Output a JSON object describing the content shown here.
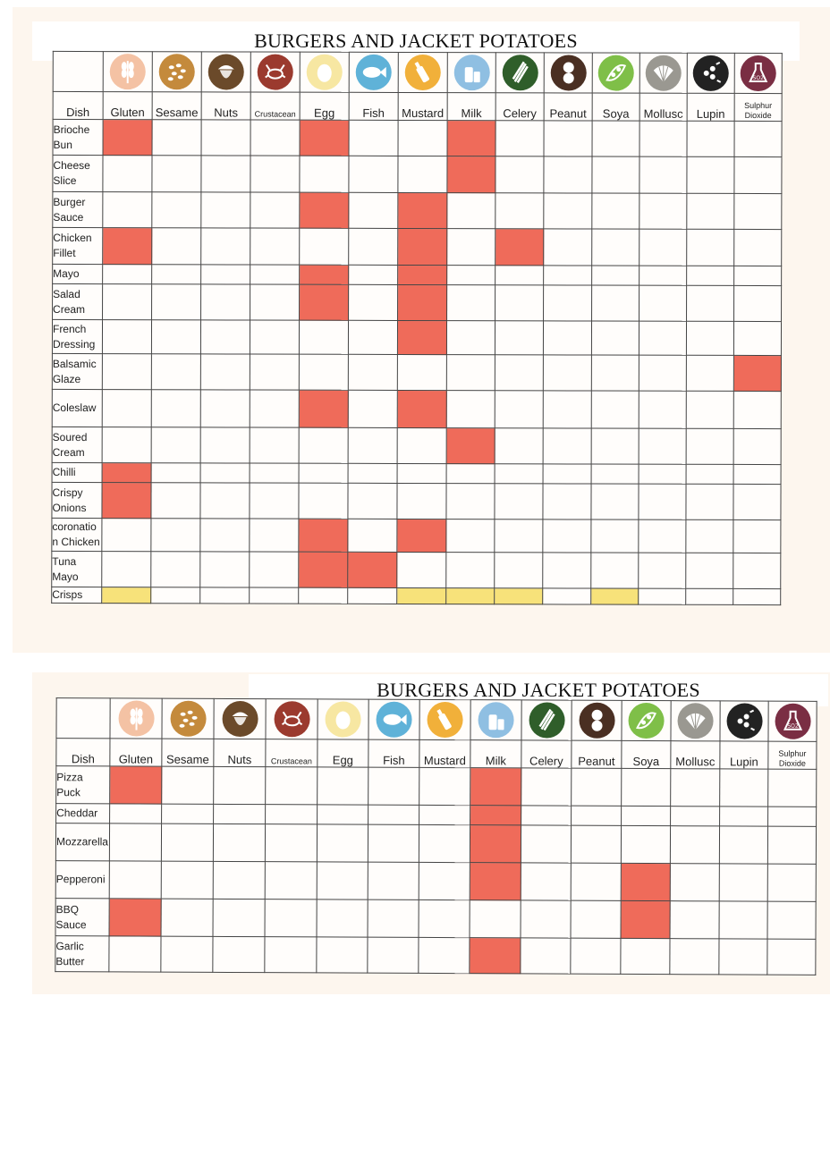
{
  "colors": {
    "contains": "#ef6b5a",
    "may_contain": "#f7e27a"
  },
  "allergens": [
    {
      "name": "Gluten",
      "icon": "wheat-icon",
      "bg": "#f4c2a4",
      "fg": "#ffffff"
    },
    {
      "name": "Sesame",
      "icon": "sesame-seeds-icon",
      "bg": "#c48a3c",
      "fg": "#ffffff"
    },
    {
      "name": "Nuts",
      "icon": "acorn-icon",
      "bg": "#6b4a2a",
      "fg": "#ffffff"
    },
    {
      "name": "Crustacean",
      "icon": "crab-icon",
      "bg": "#9b3a2e",
      "fg": "#ffffff"
    },
    {
      "name": "Egg",
      "icon": "egg-icon",
      "bg": "#f7e7a2",
      "fg": "#ffffff"
    },
    {
      "name": "Fish",
      "icon": "fish-icon",
      "bg": "#5fb2d8",
      "fg": "#ffffff"
    },
    {
      "name": "Mustard",
      "icon": "mustard-bottle-icon",
      "bg": "#f1b03a",
      "fg": "#ffffff"
    },
    {
      "name": "Milk",
      "icon": "milk-bottle-icon",
      "bg": "#8fbfe2",
      "fg": "#ffffff"
    },
    {
      "name": "Celery",
      "icon": "celery-icon",
      "bg": "#2f5e2a",
      "fg": "#ffffff"
    },
    {
      "name": "Peanut",
      "icon": "peanut-icon",
      "bg": "#4a2f22",
      "fg": "#ffffff"
    },
    {
      "name": "Soya",
      "icon": "soya-pod-icon",
      "bg": "#7fbf48",
      "fg": "#ffffff"
    },
    {
      "name": "Mollusc",
      "icon": "shell-icon",
      "bg": "#9a9891",
      "fg": "#ffffff"
    },
    {
      "name": "Lupin",
      "icon": "lupin-flower-icon",
      "bg": "#222222",
      "fg": "#ffffff"
    },
    {
      "name": "Sulphur Dioxide",
      "icon": "sulphur-flask-icon",
      "bg": "#7a2e43",
      "fg": "#ffffff"
    }
  ],
  "sheet1": {
    "title": "BURGERS AND JACKET POTATOES",
    "dish_header": "Dish",
    "rows": [
      {
        "dish": "Brioche Bun",
        "contains": [
          0,
          4,
          7
        ],
        "may": []
      },
      {
        "dish": "Cheese Slice",
        "contains": [
          7
        ],
        "may": []
      },
      {
        "dish": "Burger Sauce",
        "contains": [
          4,
          6
        ],
        "may": []
      },
      {
        "dish": "Chicken Fillet",
        "contains": [
          0,
          6,
          8
        ],
        "may": []
      },
      {
        "dish": "Mayo",
        "contains": [
          4,
          6
        ],
        "may": []
      },
      {
        "dish": "Salad Cream",
        "contains": [
          4,
          6
        ],
        "may": []
      },
      {
        "dish": "French Dressing",
        "contains": [
          6
        ],
        "may": []
      },
      {
        "dish": "Balsamic Glaze",
        "contains": [
          13
        ],
        "may": []
      },
      {
        "dish": "Coleslaw",
        "contains": [
          4,
          6
        ],
        "may": []
      },
      {
        "dish": "Soured Cream",
        "contains": [
          7
        ],
        "may": []
      },
      {
        "dish": "Chilli",
        "contains": [
          0
        ],
        "may": []
      },
      {
        "dish": "Crispy Onions",
        "contains": [
          0
        ],
        "may": []
      },
      {
        "dish": "coronation Chicken",
        "contains": [
          4,
          6
        ],
        "may": []
      },
      {
        "dish": "Tuna Mayo",
        "contains": [
          4,
          5
        ],
        "may": []
      },
      {
        "dish": "Crisps",
        "contains": [],
        "may": [
          0,
          6,
          7,
          8,
          10
        ]
      }
    ]
  },
  "sheet2": {
    "title": "BURGERS AND JACKET POTATOES",
    "dish_header": "Dish",
    "rows": [
      {
        "dish": "Pizza Puck",
        "contains": [
          0,
          7
        ],
        "may": []
      },
      {
        "dish": "Cheddar",
        "contains": [
          7
        ],
        "may": []
      },
      {
        "dish": "Mozzarella",
        "contains": [
          7
        ],
        "may": []
      },
      {
        "dish": "Pepperoni",
        "contains": [
          7,
          10
        ],
        "may": []
      },
      {
        "dish": "BBQ Sauce",
        "contains": [
          0,
          10
        ],
        "may": []
      },
      {
        "dish": "Garlic Butter",
        "contains": [
          7
        ],
        "may": []
      }
    ]
  }
}
